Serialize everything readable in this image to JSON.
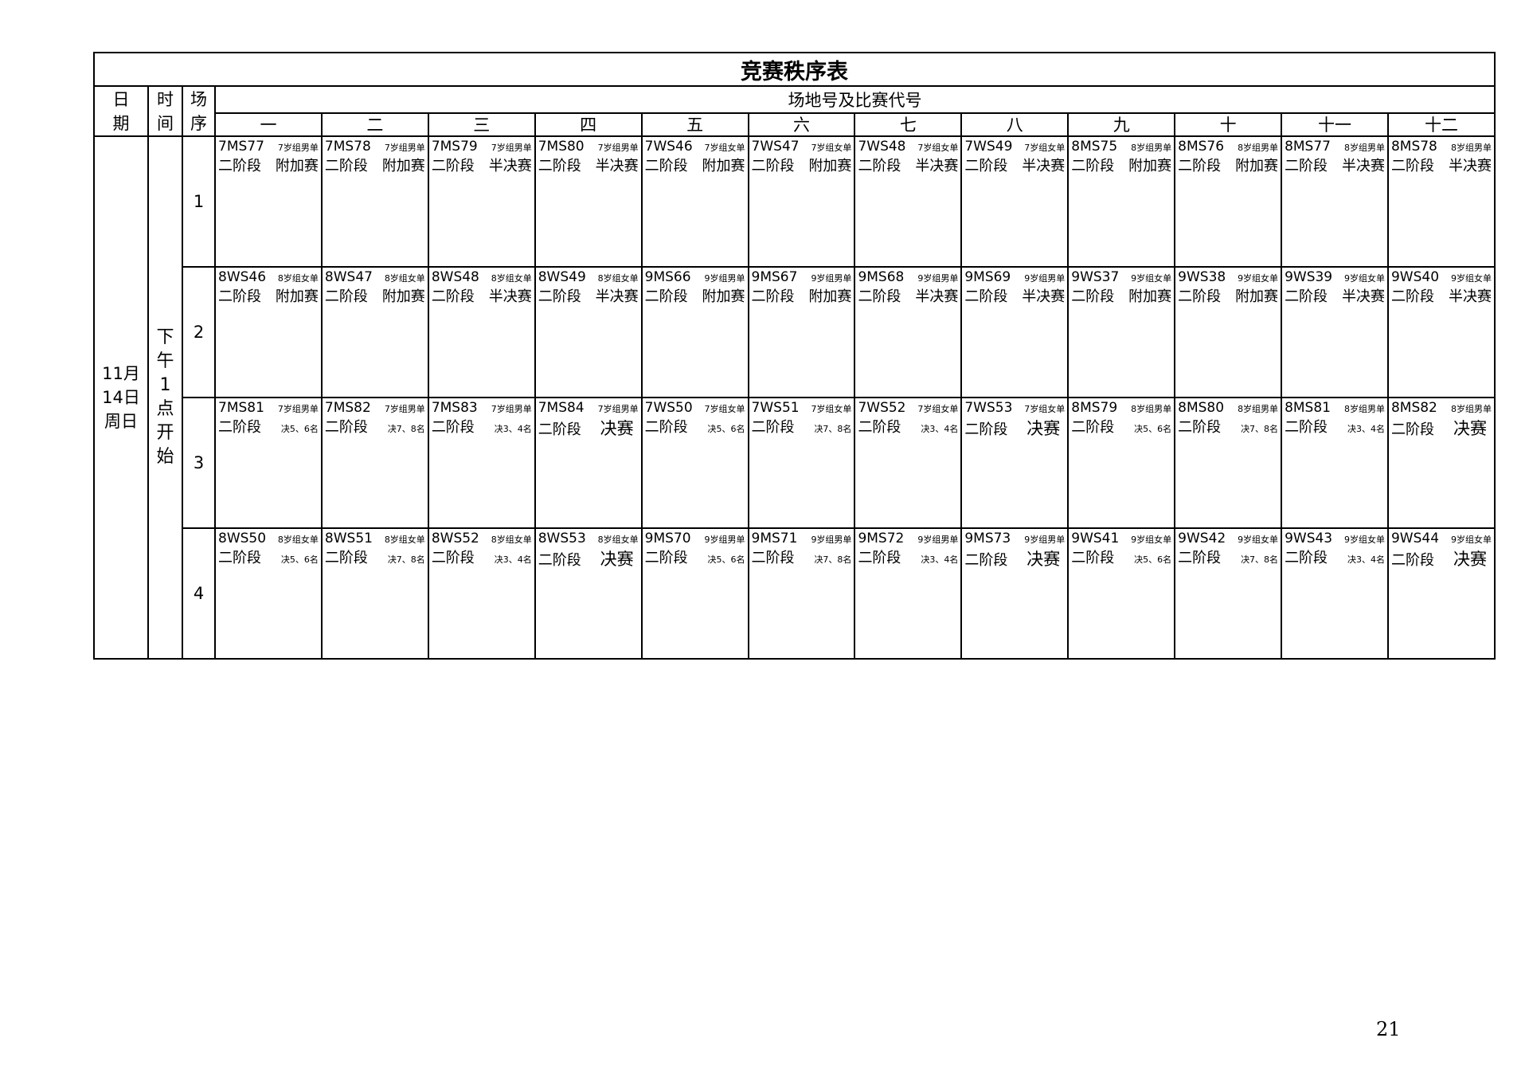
{
  "title": "竞赛秩序表",
  "headers": {
    "date": "日期",
    "time": "时间",
    "seq": "场序",
    "courts_label": "场地号及比赛代号",
    "courts": [
      "一",
      "二",
      "三",
      "四",
      "五",
      "六",
      "七",
      "八",
      "九",
      "十",
      "十一",
      "十二"
    ]
  },
  "date": "11月14日周日",
  "time": "下午1点开始",
  "phase": "二阶段",
  "rows": [
    {
      "seq": "1",
      "cells": [
        {
          "code": "7MS77",
          "group": "7岁组男单",
          "stage": "附加赛"
        },
        {
          "code": "7MS78",
          "group": "7岁组男单",
          "stage": "附加赛"
        },
        {
          "code": "7MS79",
          "group": "7岁组男单",
          "stage": "半决赛"
        },
        {
          "code": "7MS80",
          "group": "7岁组男单",
          "stage": "半决赛"
        },
        {
          "code": "7WS46",
          "group": "7岁组女单",
          "stage": "附加赛"
        },
        {
          "code": "7WS47",
          "group": "7岁组女单",
          "stage": "附加赛"
        },
        {
          "code": "7WS48",
          "group": "7岁组女单",
          "stage": "半决赛"
        },
        {
          "code": "7WS49",
          "group": "7岁组女单",
          "stage": "半决赛"
        },
        {
          "code": "8MS75",
          "group": "8岁组男单",
          "stage": "附加赛"
        },
        {
          "code": "8MS76",
          "group": "8岁组男单",
          "stage": "附加赛"
        },
        {
          "code": "8MS77",
          "group": "8岁组男单",
          "stage": "半决赛"
        },
        {
          "code": "8MS78",
          "group": "8岁组男单",
          "stage": "半决赛"
        }
      ]
    },
    {
      "seq": "2",
      "cells": [
        {
          "code": "8WS46",
          "group": "8岁组女单",
          "stage": "附加赛"
        },
        {
          "code": "8WS47",
          "group": "8岁组女单",
          "stage": "附加赛"
        },
        {
          "code": "8WS48",
          "group": "8岁组女单",
          "stage": "半决赛"
        },
        {
          "code": "8WS49",
          "group": "8岁组女单",
          "stage": "半决赛"
        },
        {
          "code": "9MS66",
          "group": "9岁组男单",
          "stage": "附加赛"
        },
        {
          "code": "9MS67",
          "group": "9岁组男单",
          "stage": "附加赛"
        },
        {
          "code": "9MS68",
          "group": "9岁组男单",
          "stage": "半决赛"
        },
        {
          "code": "9MS69",
          "group": "9岁组男单",
          "stage": "半决赛"
        },
        {
          "code": "9WS37",
          "group": "9岁组女单",
          "stage": "附加赛"
        },
        {
          "code": "9WS38",
          "group": "9岁组女单",
          "stage": "附加赛"
        },
        {
          "code": "9WS39",
          "group": "9岁组女单",
          "stage": "半决赛"
        },
        {
          "code": "9WS40",
          "group": "9岁组女单",
          "stage": "半决赛"
        }
      ]
    },
    {
      "seq": "3",
      "cells": [
        {
          "code": "7MS81",
          "group": "7岁组男单",
          "stage": "决5、6名"
        },
        {
          "code": "7MS82",
          "group": "7岁组男单",
          "stage": "决7、8名"
        },
        {
          "code": "7MS83",
          "group": "7岁组男单",
          "stage": "决3、4名"
        },
        {
          "code": "7MS84",
          "group": "7岁组男单",
          "stage": "决赛"
        },
        {
          "code": "7WS50",
          "group": "7岁组女单",
          "stage": "决5、6名"
        },
        {
          "code": "7WS51",
          "group": "7岁组女单",
          "stage": "决7、8名"
        },
        {
          "code": "7WS52",
          "group": "7岁组女单",
          "stage": "决3、4名"
        },
        {
          "code": "7WS53",
          "group": "7岁组女单",
          "stage": "决赛"
        },
        {
          "code": "8MS79",
          "group": "8岁组男单",
          "stage": "决5、6名"
        },
        {
          "code": "8MS80",
          "group": "8岁组男单",
          "stage": "决7、8名"
        },
        {
          "code": "8MS81",
          "group": "8岁组男单",
          "stage": "决3、4名"
        },
        {
          "code": "8MS82",
          "group": "8岁组男单",
          "stage": "决赛"
        }
      ]
    },
    {
      "seq": "4",
      "cells": [
        {
          "code": "8WS50",
          "group": "8岁组女单",
          "stage": "决5、6名"
        },
        {
          "code": "8WS51",
          "group": "8岁组女单",
          "stage": "决7、8名"
        },
        {
          "code": "8WS52",
          "group": "8岁组女单",
          "stage": "决3、4名"
        },
        {
          "code": "8WS53",
          "group": "8岁组女单",
          "stage": "决赛"
        },
        {
          "code": "9MS70",
          "group": "9岁组男单",
          "stage": "决5、6名"
        },
        {
          "code": "9MS71",
          "group": "9岁组男单",
          "stage": "决7、8名"
        },
        {
          "code": "9MS72",
          "group": "9岁组男单",
          "stage": "决3、4名"
        },
        {
          "code": "9MS73",
          "group": "9岁组男单",
          "stage": "决赛"
        },
        {
          "code": "9WS41",
          "group": "9岁组女单",
          "stage": "决5、6名"
        },
        {
          "code": "9WS42",
          "group": "9岁组女单",
          "stage": "决7、8名"
        },
        {
          "code": "9WS43",
          "group": "9岁组女单",
          "stage": "决3、4名"
        },
        {
          "code": "9WS44",
          "group": "9岁组女单",
          "stage": "决赛"
        }
      ]
    }
  ],
  "page_number": "21"
}
